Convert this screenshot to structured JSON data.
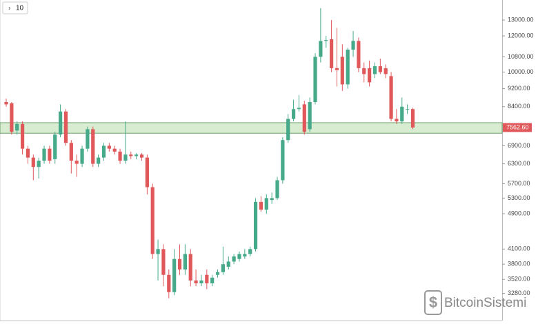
{
  "chart_data": {
    "type": "candlestick",
    "open": [
      8600,
      8550,
      7450,
      7700,
      6800,
      6500,
      6200,
      6400,
      6800,
      6450,
      7300,
      8200,
      7000,
      6400,
      6300,
      6800,
      7500,
      6300,
      6500,
      6900,
      6800,
      6700,
      6400,
      6600,
      6550,
      6600,
      6500,
      5600,
      4000,
      4100,
      3600,
      3300,
      3900,
      3700,
      4000,
      3500,
      3450,
      3600,
      3450,
      3600,
      3650,
      3750,
      3850,
      3900,
      3950,
      4000,
      4100,
      5200,
      5000,
      5250,
      5300,
      5800,
      7100,
      7900,
      8300,
      8500,
      7500,
      8600,
      10800,
      11700,
      11800,
      10200,
      10800,
      9400,
      11200,
      11700,
      10200,
      10200,
      9900,
      10300,
      10200,
      9800,
      7900,
      7800,
      8300,
      8300
    ],
    "high": [
      8750,
      8600,
      7800,
      7800,
      6900,
      6600,
      6500,
      6900,
      6900,
      7400,
      8500,
      8300,
      7100,
      6600,
      6900,
      7600,
      7600,
      6600,
      7000,
      7000,
      6900,
      6800,
      7800,
      6700,
      6650,
      6650,
      6600,
      5700,
      4300,
      4200,
      3700,
      4100,
      4200,
      4200,
      4100,
      3700,
      3600,
      3700,
      3600,
      3700,
      4150,
      3950,
      4000,
      4050,
      4100,
      4150,
      5300,
      5350,
      5400,
      5450,
      5900,
      7200,
      8100,
      8700,
      8900,
      8650,
      8800,
      11000,
      13800,
      12000,
      13000,
      12500,
      11500,
      11300,
      12300,
      11900,
      10500,
      10600,
      10500,
      10700,
      10400,
      10000,
      8300,
      8800,
      8500,
      8350
    ],
    "low": [
      8400,
      7300,
      7300,
      6600,
      6300,
      5800,
      5850,
      6300,
      6300,
      6300,
      7200,
      6900,
      6000,
      5900,
      6200,
      6700,
      6200,
      6200,
      6400,
      6700,
      6600,
      6300,
      6300,
      6450,
      6450,
      6400,
      5400,
      3900,
      3500,
      3400,
      3200,
      3250,
      3600,
      3600,
      3400,
      3400,
      3400,
      3350,
      3400,
      3550,
      3600,
      3700,
      3800,
      3850,
      3900,
      3950,
      4050,
      4950,
      4900,
      5150,
      5250,
      5700,
      7000,
      7800,
      8200,
      7300,
      7400,
      8500,
      10500,
      11300,
      10000,
      9300,
      9100,
      9200,
      10800,
      10000,
      9500,
      9300,
      9700,
      9900,
      9700,
      7800,
      7700,
      7700,
      8100,
      7500
    ],
    "close": [
      8500,
      7400,
      7700,
      6800,
      6500,
      6200,
      6400,
      6800,
      6400,
      7300,
      8200,
      7000,
      6400,
      6300,
      6800,
      7500,
      6300,
      6500,
      6900,
      6800,
      6700,
      6400,
      6600,
      6550,
      6600,
      6500,
      5600,
      4000,
      4100,
      3600,
      3300,
      3900,
      3700,
      4000,
      3500,
      3450,
      3500,
      3450,
      3550,
      3650,
      3800,
      3850,
      3950,
      4000,
      4000,
      4100,
      5200,
      5000,
      5300,
      5300,
      5800,
      7100,
      7900,
      8300,
      8350,
      7400,
      8600,
      10800,
      11700,
      11750,
      10200,
      10100,
      9400,
      11200,
      11700,
      10200,
      9900,
      9500,
      10300,
      10000,
      9900,
      7900,
      7800,
      8400,
      8300,
      7562.6
    ],
    "up_color": "#45a98a",
    "down_color": "#e0585a",
    "log_scale": true,
    "grid": false,
    "ylim": [
      2860,
      14380
    ],
    "yticks": [
      {
        "value": 3280,
        "label": "3280.00"
      },
      {
        "value": 3520,
        "label": "3520.00"
      },
      {
        "value": 3800,
        "label": "3800.00"
      },
      {
        "value": 4100,
        "label": "4100.00"
      },
      {
        "value": 4900,
        "label": "4900.00"
      },
      {
        "value": 5300,
        "label": "5300.00"
      },
      {
        "value": 5700,
        "label": "5700.00"
      },
      {
        "value": 6300,
        "label": "6300.00"
      },
      {
        "value": 6900,
        "label": "6900.00"
      },
      {
        "value": 8400,
        "label": "8400.00"
      },
      {
        "value": 9200,
        "label": "9200.00"
      },
      {
        "value": 10000,
        "label": "10000.00"
      },
      {
        "value": 10800,
        "label": "10800.00"
      },
      {
        "value": 12000,
        "label": "12000.00"
      },
      {
        "value": 13000,
        "label": "13000.00"
      }
    ],
    "highlight_range": [
      7350,
      7750
    ],
    "highlight_color": "#d7ecd0",
    "last_price": {
      "value": 7562.6,
      "label": "7562.60"
    }
  },
  "ui": {
    "interval": "10",
    "watermark": "BitcoinSistemi"
  }
}
